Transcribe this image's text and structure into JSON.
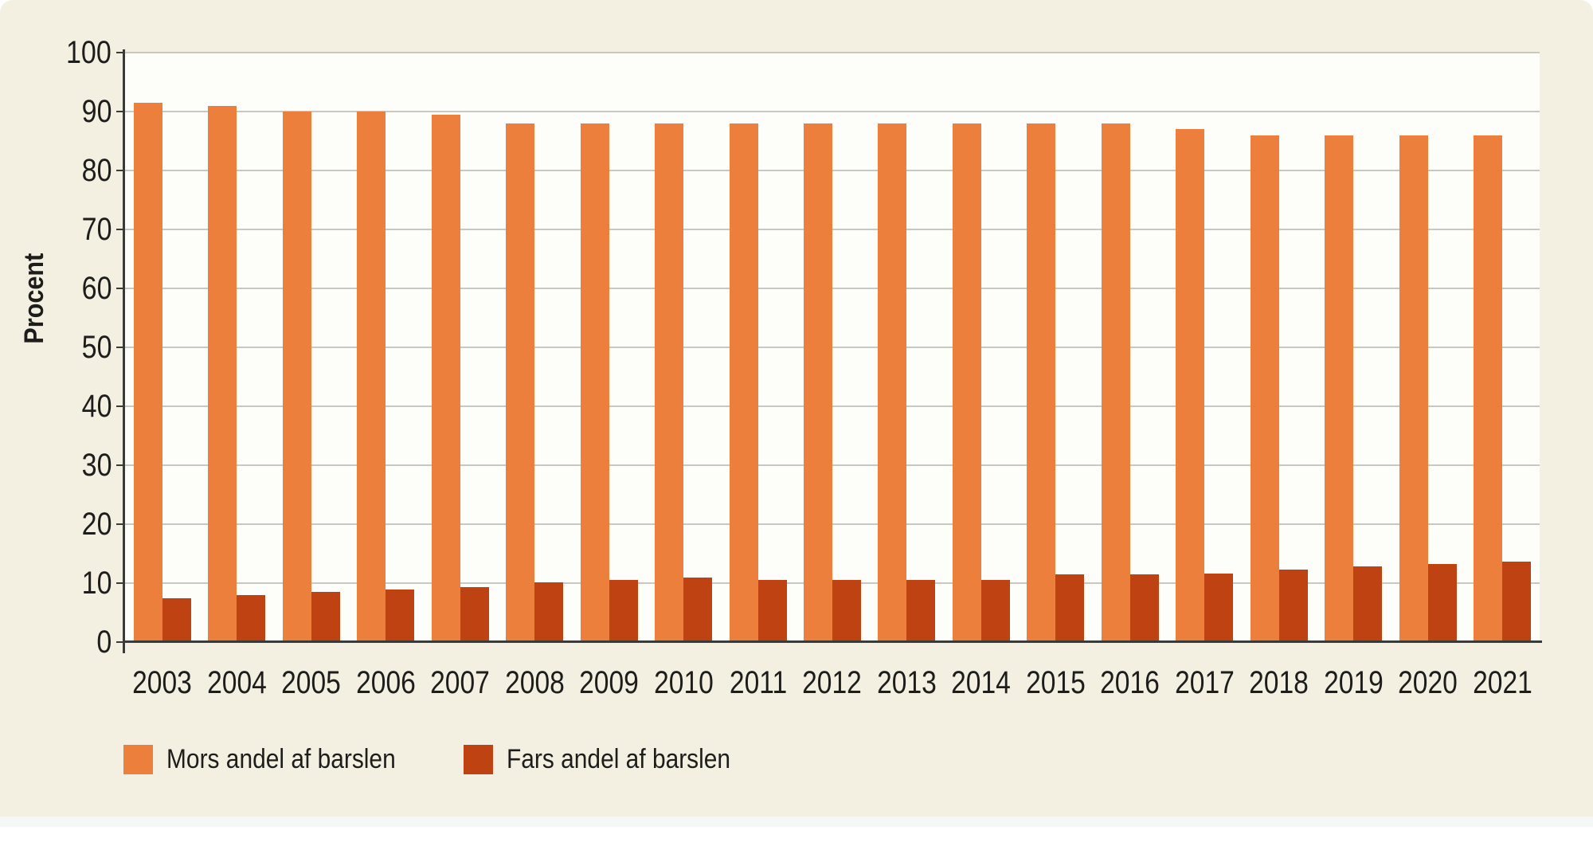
{
  "ui": {
    "page_background": "#ffffff",
    "panel_background": "#f3f0e2",
    "panel_edge_strip": "#f5f8f7",
    "plot_background": "#fdfdf9",
    "gridline_color": "#c9c7c0",
    "axis_color": "#3a3a38",
    "text_color": "#1d1d1b"
  },
  "chart_data": {
    "type": "bar",
    "title": "",
    "ylabel": "Procent",
    "xlabel": "",
    "ylim": [
      0,
      100
    ],
    "ytick_step": 10,
    "grid": true,
    "legend_position": "bottom-left",
    "categories": [
      "2003",
      "2004",
      "2005",
      "2006",
      "2007",
      "2008",
      "2009",
      "2010",
      "2011",
      "2012",
      "2013",
      "2014",
      "2015",
      "2016",
      "2017",
      "2018",
      "2019",
      "2020",
      "2021"
    ],
    "series": [
      {
        "name": "Mors andel af barslen",
        "color": "#ec7f3b",
        "values": [
          91.5,
          91,
          90,
          90,
          89.5,
          88,
          88,
          88,
          88,
          88,
          88,
          88,
          88,
          88,
          87,
          86,
          86,
          86,
          86
        ]
      },
      {
        "name": "Fars andel af barslen",
        "color": "#bf4212",
        "values": [
          7.5,
          8,
          8.5,
          8.9,
          9.3,
          10.2,
          10.6,
          11,
          10.6,
          10.6,
          10.6,
          10.6,
          11.5,
          11.5,
          11.6,
          12.3,
          12.8,
          13.2,
          13.6
        ]
      }
    ],
    "yticks": [
      0,
      10,
      20,
      30,
      40,
      50,
      60,
      70,
      80,
      90,
      100
    ]
  }
}
